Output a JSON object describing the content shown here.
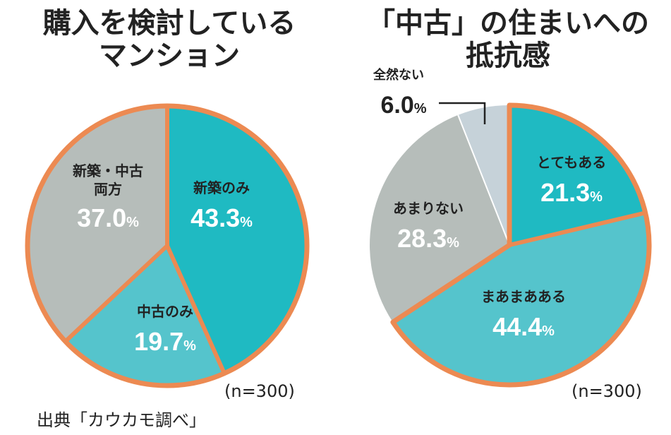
{
  "chart_data": [
    {
      "type": "pie",
      "title": "購入を検討している\nマンション",
      "categories": [
        "新築のみ",
        "中古のみ",
        "新築・中古\n両方"
      ],
      "values": [
        43.3,
        19.7,
        37.0
      ],
      "value_suffix": "%",
      "colors": [
        "#1fbac2",
        "#55c4cc",
        "#b6bdba"
      ],
      "note": "(n=300)"
    },
    {
      "type": "pie",
      "title": "「中古」の住まいへの\n抵抗感",
      "categories": [
        "とてもある",
        "まあまあある",
        "あまりない",
        "全然ない"
      ],
      "values": [
        21.3,
        44.4,
        28.3,
        6.0
      ],
      "value_suffix": "%",
      "colors": [
        "#1fbac2",
        "#55c4cc",
        "#b6bdba",
        "#c6d2d9"
      ],
      "note": "(n=300)"
    }
  ],
  "source": "出典「カウカモ調べ」",
  "style": {
    "outline_color": "#ec8a52",
    "label_color": "#ffffff",
    "label_dark": "#222222"
  }
}
